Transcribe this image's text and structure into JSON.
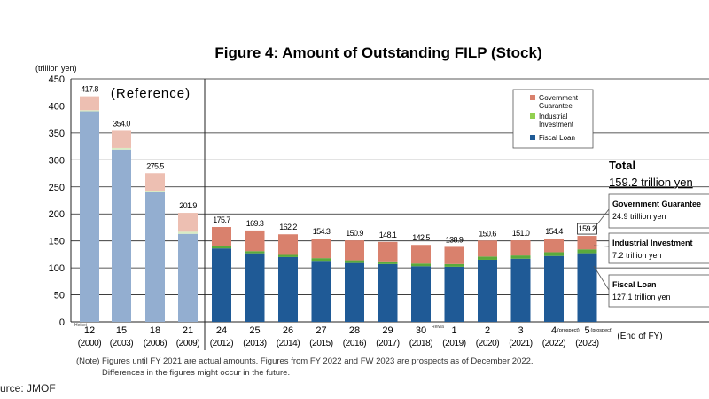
{
  "chart_data": {
    "type": "bar",
    "stacked": true,
    "title": "Figure 4: Amount of Outstanding FILP (Stock)",
    "ylabel": "(trillion yen)",
    "xlabel": "(End of FY)",
    "ylim": [
      0,
      450
    ],
    "yticks": [
      0,
      50,
      100,
      150,
      200,
      250,
      300,
      350,
      400,
      450
    ],
    "reference_label": "(Reference)",
    "era_labels": {
      "heisei": "Heisei",
      "reiwa": "Reiwa"
    },
    "reference_bars": [
      {
        "fy": "12",
        "year": "(2000)",
        "fiscal_loan": 390,
        "industrial_investment": 2,
        "government_guarantee": 25.8,
        "total_label": "417.8"
      },
      {
        "fy": "15",
        "year": "(2003)",
        "fiscal_loan": 319,
        "industrial_investment": 3,
        "government_guarantee": 32,
        "total_label": "354.0"
      },
      {
        "fy": "18",
        "year": "(2006)",
        "fiscal_loan": 240,
        "industrial_investment": 3,
        "government_guarantee": 32.5,
        "total_label": "275.5"
      },
      {
        "fy": "21",
        "year": "(2009)",
        "fiscal_loan": 163,
        "industrial_investment": 4,
        "government_guarantee": 34.9,
        "total_label": "201.9"
      }
    ],
    "bars": [
      {
        "fy": "24",
        "year": "(2012)",
        "fiscal_loan": 136,
        "industrial_investment": 4,
        "government_guarantee": 35.7,
        "total_label": "175.7"
      },
      {
        "fy": "25",
        "year": "(2013)",
        "fiscal_loan": 127,
        "industrial_investment": 4,
        "government_guarantee": 38.3,
        "total_label": "169.3"
      },
      {
        "fy": "26",
        "year": "(2014)",
        "fiscal_loan": 120,
        "industrial_investment": 4,
        "government_guarantee": 38.2,
        "total_label": "162.2"
      },
      {
        "fy": "27",
        "year": "(2015)",
        "fiscal_loan": 113,
        "industrial_investment": 5,
        "government_guarantee": 36.3,
        "total_label": "154.3"
      },
      {
        "fy": "28",
        "year": "(2016)",
        "fiscal_loan": 109,
        "industrial_investment": 5,
        "government_guarantee": 36.9,
        "total_label": "150.9"
      },
      {
        "fy": "29",
        "year": "(2017)",
        "fiscal_loan": 107,
        "industrial_investment": 5,
        "government_guarantee": 36.1,
        "total_label": "148.1"
      },
      {
        "fy": "30",
        "year": "(2018)",
        "fiscal_loan": 103,
        "industrial_investment": 5,
        "government_guarantee": 34.5,
        "total_label": "142.5"
      },
      {
        "fy": "1",
        "year": "(2019)",
        "fiscal_loan": 102,
        "industrial_investment": 5,
        "government_guarantee": 31.9,
        "total_label": "138.9"
      },
      {
        "fy": "2",
        "year": "(2020)",
        "fiscal_loan": 115,
        "industrial_investment": 6,
        "government_guarantee": 29.6,
        "total_label": "150.6"
      },
      {
        "fy": "3",
        "year": "(2021)",
        "fiscal_loan": 117,
        "industrial_investment": 6,
        "government_guarantee": 28.0,
        "total_label": "151.0"
      },
      {
        "fy": "4",
        "year": "(2022)",
        "prospect": "(prospect)",
        "fiscal_loan": 122,
        "industrial_investment": 7,
        "government_guarantee": 25.4,
        "total_label": "154.4"
      },
      {
        "fy": "5",
        "year": "(2023)",
        "prospect": "(prospect)",
        "fiscal_loan": 127.1,
        "industrial_investment": 7.2,
        "government_guarantee": 24.9,
        "total_label": "159.2"
      }
    ],
    "legend": [
      {
        "label": "Government Guarantee",
        "color": "#d9816d"
      },
      {
        "label": "Industrial Investment",
        "color": "#92d050"
      },
      {
        "label": "Fiscal Loan",
        "color": "#1f5a96"
      }
    ],
    "colors": {
      "ref_fiscal_loan": "#93aed0",
      "ref_industrial_investment": "#d8ecc4",
      "ref_government_guarantee": "#edbfb2",
      "fiscal_loan": "#1f5a96",
      "industrial_investment": "#5aaa3c",
      "government_guarantee": "#d9816d"
    },
    "summary": {
      "total_heading": "Total",
      "total_value": "159.2 trillion yen",
      "items": [
        {
          "label": "Government Guarantee",
          "value": "24.9 trillion yen"
        },
        {
          "label": "Industrial Investment",
          "value": "7.2 trillion yen"
        },
        {
          "label": "Fiscal Loan",
          "value": "127.1 trillion yen"
        }
      ]
    },
    "note_line1": "(Note) Figures until FY 2021 are actual amounts. Figures from FY 2022 and FW 2023 are prospects as of December 2022.",
    "note_line2": "Differences in the figures might occur in the future.",
    "source": "urce: JMOF"
  }
}
